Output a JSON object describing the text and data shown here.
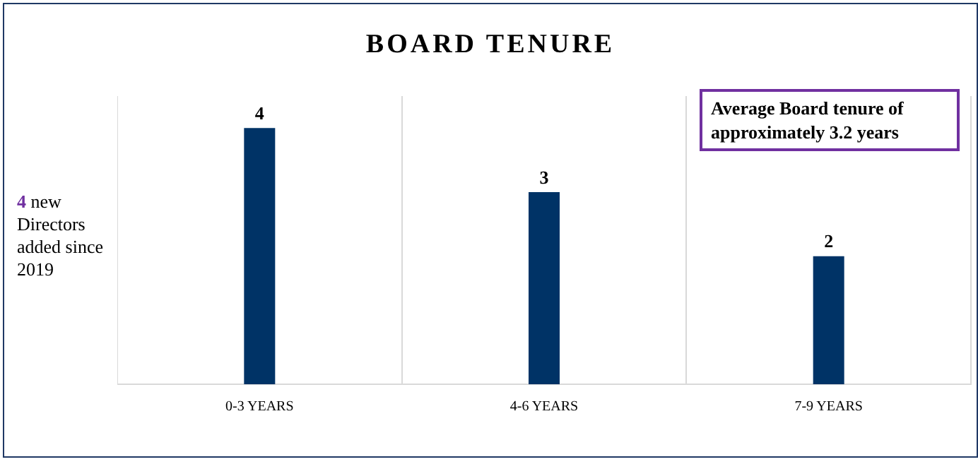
{
  "chart_data": {
    "type": "bar",
    "title": "BOARD TENURE",
    "categories": [
      "0-3 YEARS",
      "4-6 YEARS",
      "7-9 YEARS"
    ],
    "values": [
      4,
      3,
      2
    ],
    "color": "#003366",
    "data_labels": true,
    "ylim": [
      0,
      4.5
    ],
    "grid": "x",
    "legend": false,
    "annotations": [
      "4 new Directors added since 2019",
      "Average Board tenure of approximately 3.2 years"
    ]
  }
}
